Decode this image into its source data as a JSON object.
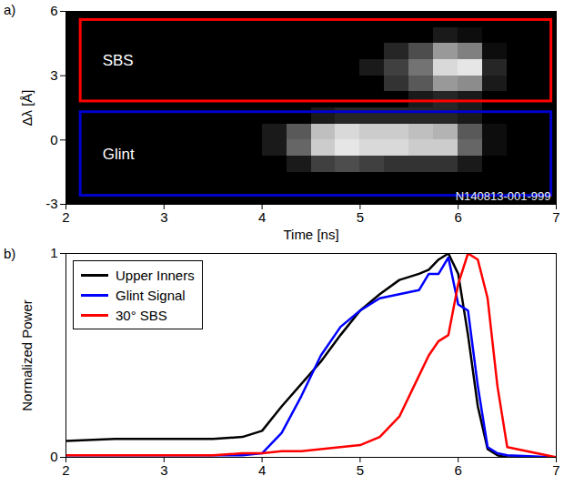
{
  "chart_data": [
    {
      "type": "heatmap",
      "panel_label": "a)",
      "xlabel": "Time [ns]",
      "ylabel": "Δλ [Å]",
      "xlim": [
        2,
        7
      ],
      "ylim": [
        -3,
        6
      ],
      "xticks": [
        2,
        3,
        4,
        5,
        6,
        7
      ],
      "yticks": [
        -3,
        0,
        3,
        6
      ],
      "heatmap": {
        "x_bins": [
          2,
          2.25,
          2.5,
          2.75,
          3,
          3.25,
          3.5,
          3.75,
          4,
          4.25,
          4.5,
          4.75,
          5,
          5.25,
          5.5,
          5.75,
          6,
          6.25,
          6.5,
          6.75,
          7
        ],
        "y_bins": [
          -3,
          -2.25,
          -1.5,
          -0.75,
          0,
          0.75,
          1.5,
          2.25,
          3,
          3.75,
          4.5,
          5.25,
          6
        ],
        "value_range": [
          0,
          1
        ],
        "values": [
          [
            0,
            0,
            0,
            0,
            0,
            0,
            0,
            0,
            0,
            0,
            0,
            0,
            0,
            0,
            0,
            0,
            0,
            0,
            0,
            0
          ],
          [
            0,
            0,
            0,
            0,
            0,
            0,
            0,
            0,
            0,
            0,
            0,
            0,
            0,
            0,
            0,
            0,
            0,
            0,
            0,
            0
          ],
          [
            0,
            0,
            0,
            0,
            0,
            0,
            0,
            0,
            0,
            0.1,
            0.25,
            0.3,
            0.25,
            0.2,
            0.2,
            0.2,
            0.1,
            0,
            0,
            0
          ],
          [
            0,
            0,
            0,
            0,
            0,
            0,
            0,
            0,
            0.1,
            0.4,
            0.8,
            0.9,
            0.85,
            0.85,
            0.8,
            0.8,
            0.4,
            0.05,
            0,
            0
          ],
          [
            0,
            0,
            0,
            0,
            0,
            0,
            0,
            0,
            0.1,
            0.35,
            0.75,
            0.85,
            0.8,
            0.8,
            0.75,
            0.7,
            0.35,
            0.05,
            0,
            0
          ],
          [
            0,
            0,
            0,
            0,
            0,
            0,
            0,
            0,
            0,
            0,
            0.1,
            0.15,
            0.15,
            0.15,
            0.15,
            0.15,
            0.1,
            0,
            0,
            0
          ],
          [
            0,
            0,
            0,
            0,
            0,
            0,
            0,
            0,
            0,
            0,
            0,
            0,
            0,
            0,
            0.1,
            0.15,
            0.1,
            0,
            0,
            0
          ],
          [
            0,
            0,
            0,
            0,
            0,
            0,
            0,
            0,
            0,
            0,
            0,
            0,
            0,
            0.2,
            0.35,
            0.6,
            0.55,
            0.1,
            0,
            0
          ],
          [
            0,
            0,
            0,
            0,
            0,
            0,
            0,
            0,
            0,
            0,
            0,
            0,
            0.1,
            0.25,
            0.45,
            0.85,
            0.9,
            0.15,
            0,
            0
          ],
          [
            0,
            0,
            0,
            0,
            0,
            0,
            0,
            0,
            0,
            0,
            0,
            0,
            0,
            0.15,
            0.3,
            0.6,
            0.5,
            0.05,
            0,
            0
          ],
          [
            0,
            0,
            0,
            0,
            0,
            0,
            0,
            0,
            0,
            0,
            0,
            0,
            0,
            0,
            0,
            0.1,
            0.05,
            0,
            0,
            0
          ],
          [
            0,
            0,
            0,
            0,
            0,
            0,
            0,
            0,
            0,
            0,
            0,
            0,
            0,
            0,
            0,
            0,
            0,
            0,
            0,
            0
          ]
        ]
      },
      "boxes": [
        {
          "label": "SBS",
          "color": "#ff0000",
          "x": [
            2.15,
            6.95
          ],
          "y": [
            1.8,
            5.6
          ]
        },
        {
          "label": "Glint",
          "color": "#0000cc",
          "x": [
            2.15,
            6.95
          ],
          "y": [
            -2.6,
            1.3
          ]
        }
      ],
      "annotations": [
        "N140813-001-999"
      ]
    },
    {
      "type": "line",
      "panel_label": "b)",
      "ylabel": "Normalized Power",
      "xlim": [
        2,
        7
      ],
      "ylim": [
        0,
        1
      ],
      "xticks": [
        2,
        3,
        4,
        5,
        6,
        7
      ],
      "yticks": [
        0,
        1
      ],
      "legend": "upper left",
      "x": [
        2,
        2.5,
        3,
        3.5,
        3.8,
        4.0,
        4.2,
        4.4,
        4.6,
        4.8,
        5.0,
        5.2,
        5.4,
        5.6,
        5.7,
        5.8,
        5.9,
        6.0,
        6.1,
        6.2,
        6.3,
        6.4,
        6.5,
        7.0
      ],
      "series": [
        {
          "name": "Upper Inners",
          "color": "#000000",
          "values": [
            0.08,
            0.09,
            0.09,
            0.09,
            0.1,
            0.13,
            0.25,
            0.36,
            0.47,
            0.6,
            0.72,
            0.8,
            0.87,
            0.9,
            0.92,
            0.97,
            1.0,
            0.9,
            0.6,
            0.25,
            0.04,
            0.01,
            0,
            0
          ]
        },
        {
          "name": "Glint Signal",
          "color": "#0000ff",
          "values": [
            0.01,
            0.01,
            0.01,
            0.01,
            0.01,
            0.02,
            0.12,
            0.3,
            0.5,
            0.64,
            0.72,
            0.78,
            0.8,
            0.82,
            0.9,
            0.9,
            0.98,
            0.75,
            0.72,
            0.35,
            0.05,
            0.02,
            0.01,
            0
          ]
        },
        {
          "name": "30° SBS",
          "color": "#ff0000",
          "values": [
            0.01,
            0.01,
            0.01,
            0.01,
            0.02,
            0.02,
            0.03,
            0.03,
            0.04,
            0.05,
            0.06,
            0.1,
            0.2,
            0.4,
            0.5,
            0.57,
            0.6,
            0.85,
            1.0,
            0.97,
            0.78,
            0.35,
            0.05,
            0
          ]
        }
      ]
    }
  ]
}
